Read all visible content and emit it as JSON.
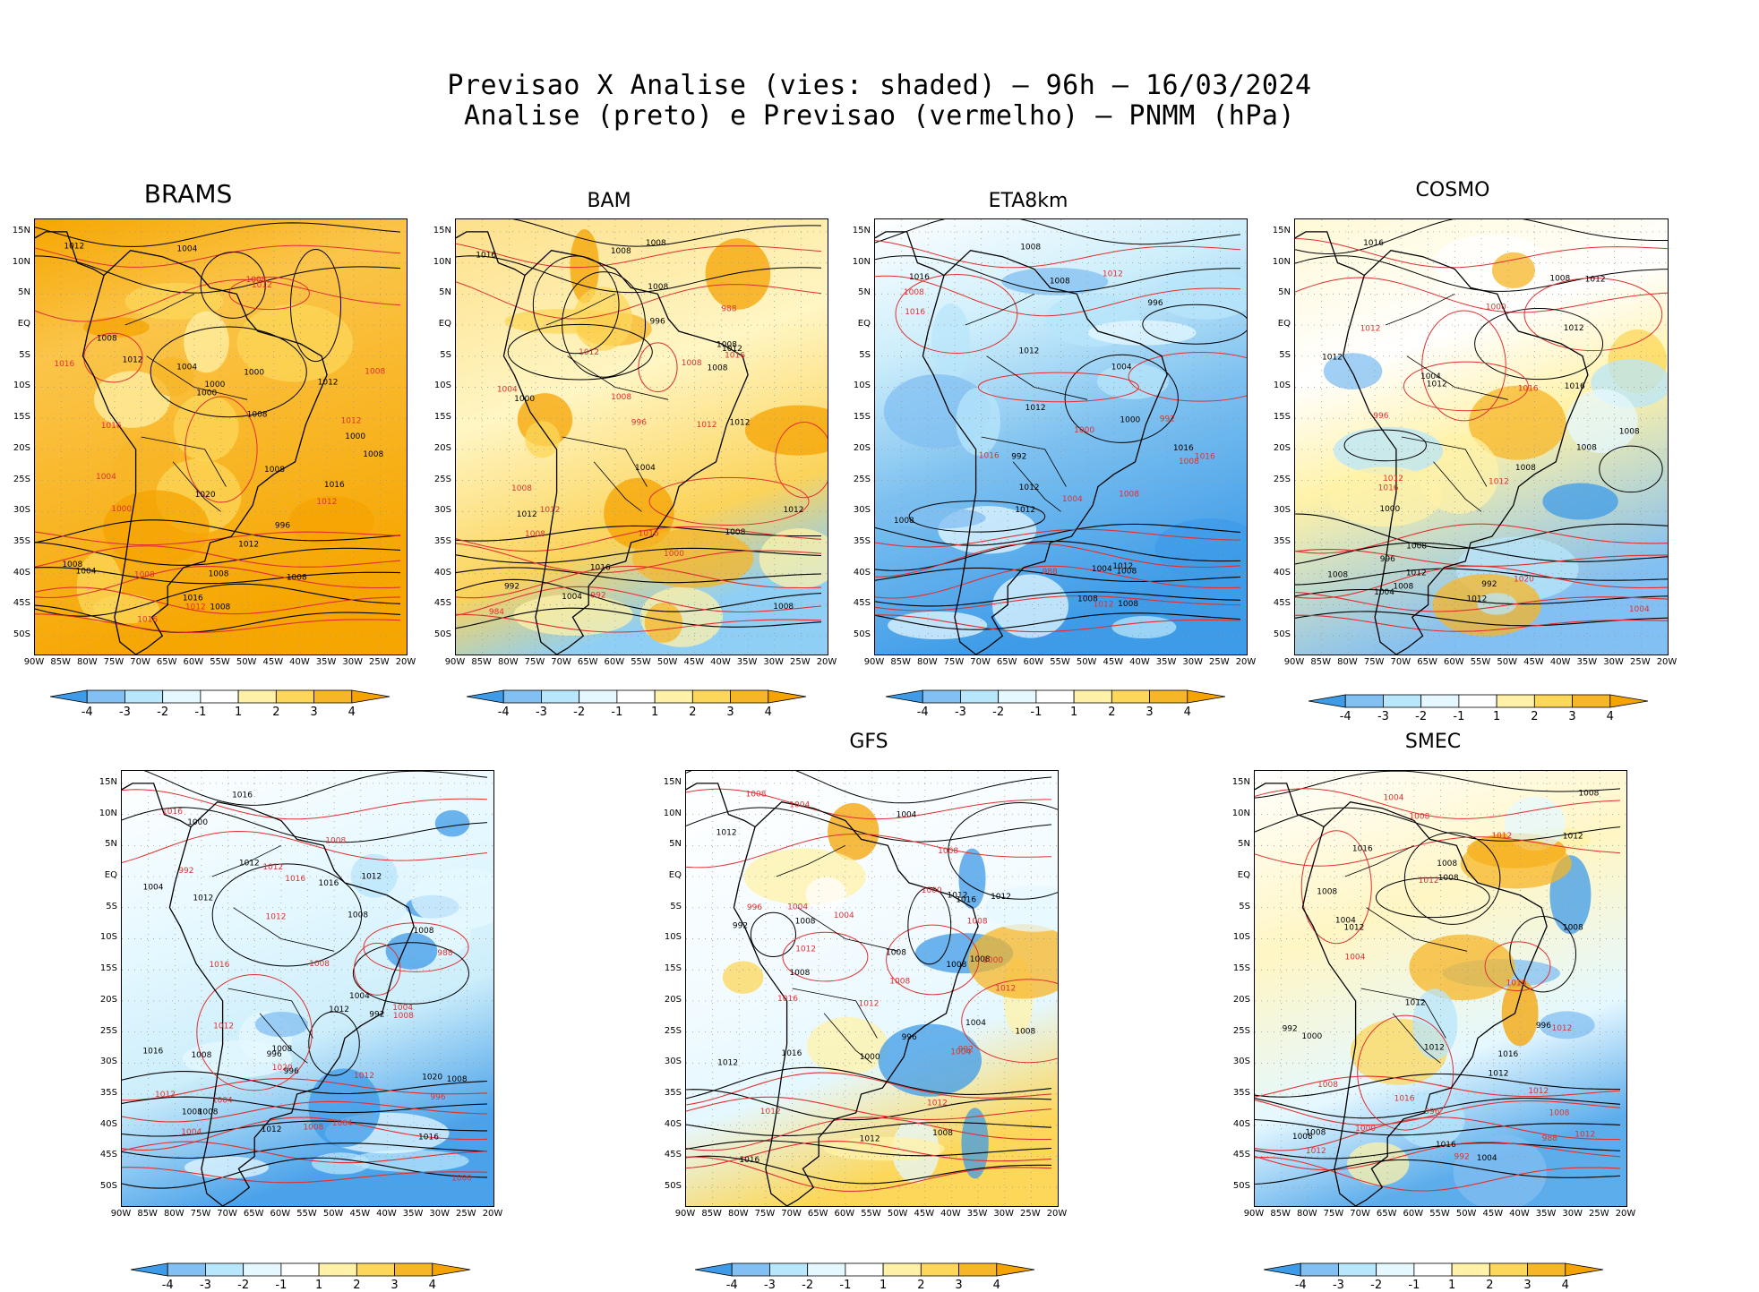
{
  "figure": {
    "title_line1": "Previsao X Analise (vies: shaded) – 96h – 16/03/2024",
    "title_line2": "Analise (preto) e Previsao (vermelho) – PNMM (hPa)"
  },
  "axes": {
    "lat_labels": [
      "15N",
      "10N",
      "5N",
      "EQ",
      "5S",
      "10S",
      "15S",
      "20S",
      "25S",
      "30S",
      "35S",
      "40S",
      "45S",
      "50S"
    ],
    "lon_labels": [
      "90W",
      "85W",
      "80W",
      "75W",
      "70W",
      "65W",
      "60W",
      "55W",
      "50W",
      "45W",
      "40W",
      "35W",
      "30W",
      "25W",
      "20W"
    ]
  },
  "colorbar": {
    "labels": [
      "-4",
      "-3",
      "-2",
      "-1",
      "1",
      "2",
      "3",
      "4"
    ],
    "colors": [
      "#3d9be8",
      "#82bff2",
      "#b8e6fb",
      "#e5f8ff",
      "#ffffff",
      "#fff2a8",
      "#fcd75a",
      "#f7b627",
      "#f5a300"
    ]
  },
  "contour_colors": {
    "analysis": "#000000",
    "forecast": "#e03030"
  },
  "panels": [
    {
      "name": "BRAMS",
      "title": "BRAMS",
      "bias": "warm-strong",
      "labels_black": [
        "1008",
        "1012",
        "1008",
        "1012",
        "1008",
        "1008",
        "1004",
        "1008",
        "1000",
        "1004",
        "1008",
        "1016",
        "1016",
        "1012",
        "1020",
        "1008",
        "1008",
        "1012",
        "1004",
        "1000",
        "1000",
        "996",
        "1000"
      ],
      "labels_red": [
        "1012",
        "1016",
        "1012",
        "1008",
        "1012",
        "1016",
        "1016",
        "1012",
        "1008",
        "1004",
        "1000",
        "1008"
      ]
    },
    {
      "name": "BAM",
      "title": "BAM",
      "bias": "warm",
      "labels_black": [
        "1008",
        "1012",
        "1016",
        "1012",
        "1008",
        "1008",
        "1004",
        "1008",
        "1008",
        "1012",
        "1016",
        "1012",
        "1008",
        "1004",
        "1000",
        "996",
        "992",
        "1008"
      ],
      "labels_red": [
        "1012",
        "1016",
        "1008",
        "1012",
        "1012",
        "1008",
        "1016",
        "1008",
        "1004",
        "1000",
        "996",
        "992",
        "988",
        "984",
        "1008"
      ]
    },
    {
      "name": "ETA8km",
      "title": "ETA8km",
      "bias": "cool",
      "labels_black": [
        "1012",
        "1016",
        "1008",
        "1008",
        "1012",
        "1008",
        "1004",
        "1008",
        "1012",
        "1016",
        "1012",
        "1008",
        "1004",
        "1000",
        "996",
        "992",
        "1012",
        "1008"
      ],
      "labels_red": [
        "1016",
        "1012",
        "1012",
        "1008",
        "1016",
        "1008",
        "1016",
        "1008",
        "1004",
        "1000",
        "992",
        "988"
      ]
    },
    {
      "name": "COSMO",
      "title": "COSMO",
      "bias": "mixed",
      "labels_black": [
        "1012",
        "1008",
        "1008",
        "1012",
        "1012",
        "1008",
        "1008",
        "1012",
        "1004",
        "1016",
        "1012",
        "1008",
        "1008",
        "1016",
        "1012",
        "1004",
        "1008",
        "1000",
        "996",
        "992"
      ],
      "labels_red": [
        "1012",
        "1012",
        "1016",
        "1020",
        "1012",
        "1016",
        "1004",
        "1000",
        "996"
      ]
    },
    {
      "name": "panel-5",
      "title": "",
      "bias": "mixed-cool",
      "labels_black": [
        "1012",
        "1016",
        "1012",
        "1008",
        "1008",
        "1016",
        "1008",
        "1012",
        "1016",
        "1012",
        "1008",
        "1016",
        "1008",
        "1012",
        "1008",
        "1004",
        "1020",
        "1008",
        "1000",
        "996",
        "1004",
        "992",
        "996"
      ],
      "labels_red": [
        "1012",
        "1016",
        "1012",
        "1016",
        "1008",
        "1008",
        "1012",
        "1012",
        "1004",
        "1016",
        "1012",
        "1008",
        "1020",
        "1004",
        "1008",
        "1004",
        "1000",
        "996",
        "992",
        "988",
        "1004"
      ]
    },
    {
      "name": "GFS",
      "title": "GFS",
      "bias": "neutral",
      "labels_black": [
        "1012",
        "1016",
        "1008",
        "1012",
        "1008",
        "1008",
        "1008",
        "1012",
        "1016",
        "1004",
        "1008",
        "1012",
        "1016",
        "1012",
        "1008",
        "1004",
        "1000",
        "996",
        "992",
        "1008"
      ],
      "labels_red": [
        "1012",
        "1016",
        "1012",
        "1008",
        "1008",
        "1008",
        "1012",
        "1012",
        "1000",
        "1004",
        "1004",
        "1012",
        "1008",
        "1004",
        "1000",
        "996",
        "992",
        "1004"
      ]
    },
    {
      "name": "SMEC",
      "title": "SMEC",
      "bias": "mixed-warm",
      "labels_black": [
        "1012",
        "1016",
        "1008",
        "1012",
        "1008",
        "1008",
        "1008",
        "1012",
        "1004",
        "1016",
        "1008",
        "1012",
        "1016",
        "1012",
        "1008",
        "1004",
        "1000",
        "996",
        "992",
        "1008"
      ],
      "labels_red": [
        "1012",
        "1016",
        "1012",
        "1008",
        "1012",
        "1008",
        "1016",
        "1012",
        "1004",
        "1012",
        "1008",
        "1004",
        "1000",
        "996",
        "992",
        "988",
        "1012"
      ]
    }
  ]
}
